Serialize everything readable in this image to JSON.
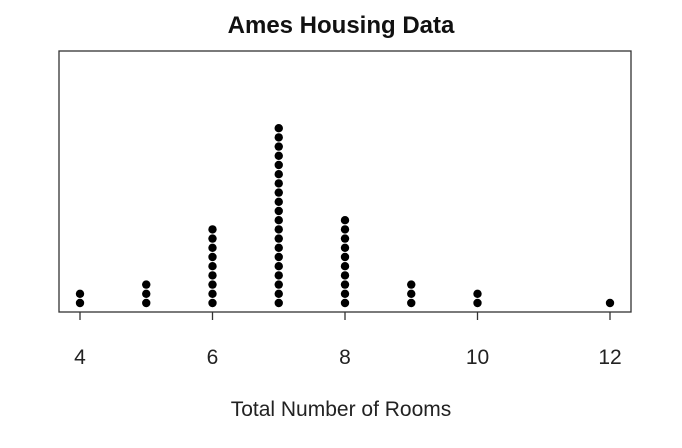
{
  "chart_data": {
    "type": "dot",
    "title": "Ames Housing Data",
    "xlabel": "Total Number of Rooms",
    "ylabel": "",
    "xlim": [
      4,
      12
    ],
    "xticks": [
      4,
      6,
      8,
      10,
      12
    ],
    "grid": false,
    "legend": "none",
    "point_color": "#000000",
    "points": [
      {
        "x": 4,
        "count": 2
      },
      {
        "x": 5,
        "count": 3
      },
      {
        "x": 6,
        "count": 9
      },
      {
        "x": 7,
        "count": 20
      },
      {
        "x": 8,
        "count": 10
      },
      {
        "x": 9,
        "count": 3
      },
      {
        "x": 10,
        "count": 2
      },
      {
        "x": 12,
        "count": 1
      }
    ]
  }
}
